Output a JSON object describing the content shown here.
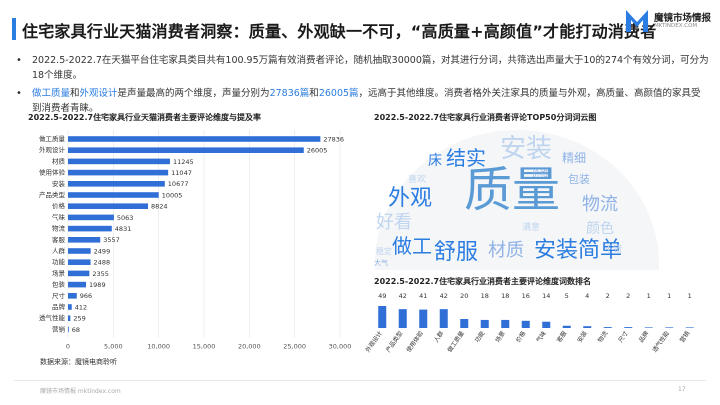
{
  "page": {
    "title": "住宅家具行业天猫消费者洞察：质量、外观缺一不可，“高质量+高颜值”才能打动消费者",
    "logo_name": "魔镜市场情报",
    "logo_url": "MKTINDEX.COM",
    "logo_color": "#2b7de1",
    "accent_color": "#2b7de1",
    "highlight_color": "#2b7de1"
  },
  "bullets": {
    "b1": "2022.5-2022.7在天猫平台住宅家具类目共有100.95万篇有效消费者评论，随机抽取30000篇，对其进行分词，共筛选出声量大于10的274个有效分词，可分为18个维度。",
    "b2_hl1": "做工质量",
    "b2_t1": "和",
    "b2_hl2": "外观设计",
    "b2_t2": "是声量最高的两个维度，声量分别为",
    "b2_hl3": "27836篇",
    "b2_t3": "和",
    "b2_hl4": "26005篇",
    "b2_t4": "，远高于其他维度。消费者格外关注家具的质量与外观，高质量、高颜值的家具受到消费者青睐。"
  },
  "panels": {
    "left_title": "2022.5-2022.7住宅家具行业天猫消费者主要评论维度与提及率",
    "cloud_title": "2022.5-2022.7住宅家具行业消费者评论TOP50分词词云图",
    "right_title": "2022.5-2022.7住宅家具行业消费者主要评论维度词数排名"
  },
  "source": "数据来源：魔镜电商聆听",
  "footer": "魔镜市场情报  mktindex.com",
  "page_number": "17",
  "wordcloud": {
    "words": [
      "质量",
      "安装",
      "外观",
      "结实",
      "舒服",
      "材质",
      "安装简单",
      "做工",
      "物流",
      "好看",
      "精细",
      "包装",
      "床",
      "颜色",
      "大气",
      "不错",
      "满意",
      "喜欢",
      "价格",
      "稳定"
    ]
  },
  "chart_data": [
    {
      "type": "bar",
      "orientation": "horizontal",
      "color": "#2f6fd6",
      "categories": [
        "做工质量",
        "外观设计",
        "材质",
        "使用体验",
        "安装",
        "产品类型",
        "价格",
        "气味",
        "物流",
        "客服",
        "人群",
        "功能",
        "场景",
        "包装",
        "尺寸",
        "品牌",
        "透气性能",
        "营销"
      ],
      "values": [
        27836,
        26005,
        11245,
        11047,
        10677,
        10005,
        8824,
        5063,
        4831,
        3557,
        2499,
        2488,
        2355,
        1989,
        966,
        412,
        259,
        68
      ],
      "xlim": [
        0,
        30000
      ],
      "xticks": [
        "0",
        "5,000",
        "10,000",
        "15,000",
        "20,000",
        "25,000",
        "30,000"
      ],
      "grid": true
    },
    {
      "type": "bar",
      "orientation": "vertical",
      "color": "#2f6fd6",
      "categories": [
        "外观设计",
        "产品类型",
        "使用体验",
        "人群",
        "做工质量",
        "功能",
        "场景",
        "价格",
        "气味",
        "客服",
        "安装",
        "物流",
        "尺寸",
        "品牌",
        "透气性能",
        "营销"
      ],
      "values": [
        49,
        42,
        41,
        42,
        20,
        18,
        18,
        16,
        14,
        5,
        4,
        2,
        2,
        1,
        1,
        1
      ],
      "value_labels": [
        "49",
        "42",
        "41",
        "42",
        "20",
        "18",
        "18",
        "16",
        "14",
        "5",
        "4",
        "2",
        "2",
        "1",
        "1",
        "1"
      ]
    }
  ]
}
